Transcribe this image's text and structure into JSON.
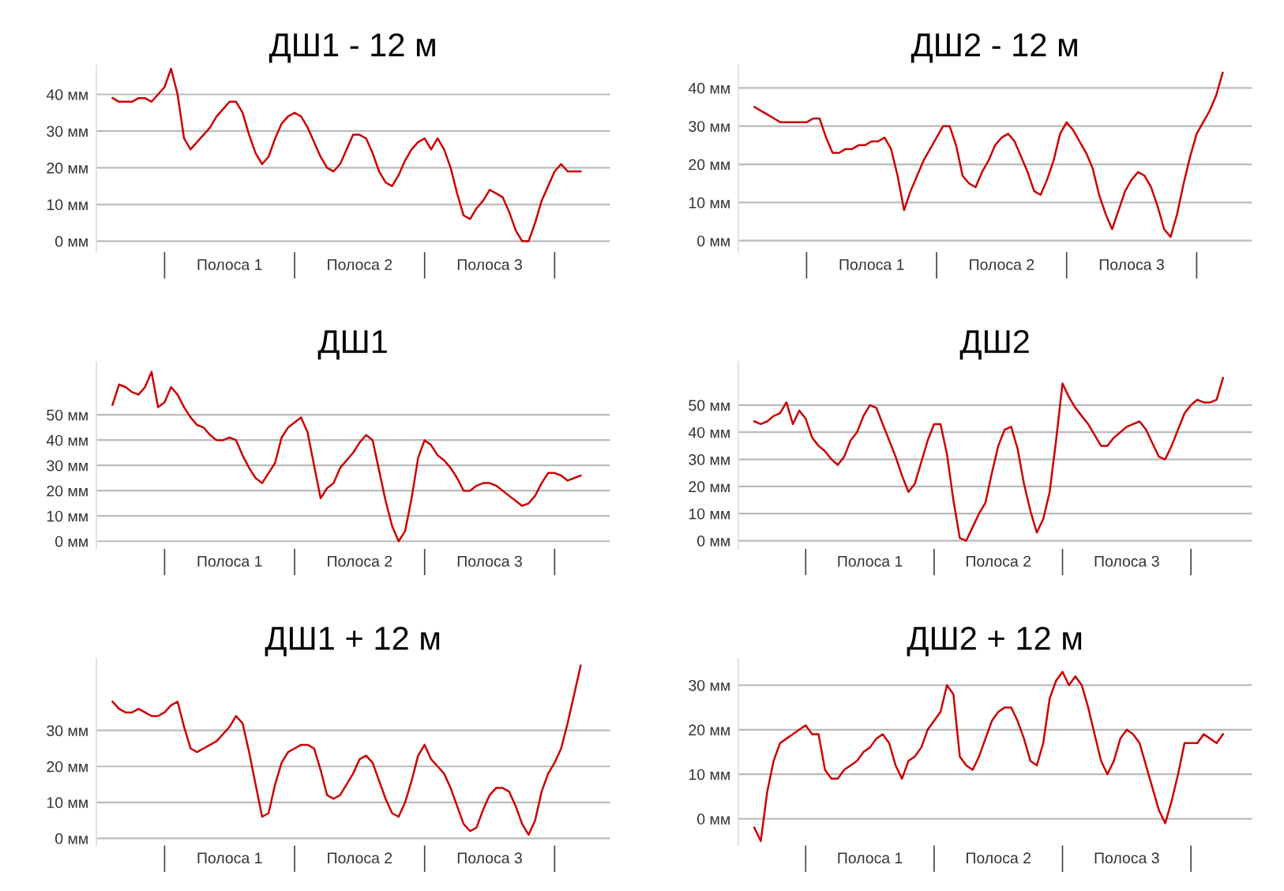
{
  "chart_data": [
    {
      "type": "line",
      "title": "ДШ1 - 12 м",
      "grid": "y",
      "color": "#cc0000",
      "ylim": [
        -3,
        48
      ],
      "categories": [
        null,
        null,
        null,
        null,
        null,
        null,
        null,
        null,
        null,
        null,
        null,
        null,
        null,
        null,
        null,
        null,
        null,
        null,
        "Полоса 1",
        null,
        null,
        null,
        null,
        null,
        null,
        null,
        null,
        null,
        null,
        null,
        null,
        null,
        null,
        null,
        null,
        null,
        null,
        null,
        "Полоса 2",
        null,
        null,
        null,
        null,
        null,
        null,
        null,
        null,
        null,
        null,
        null,
        null,
        null,
        null,
        null,
        null,
        null,
        null,
        null,
        "Полоса 3",
        null,
        null,
        null,
        null,
        null,
        null,
        null,
        null,
        null,
        null,
        null,
        null,
        null,
        null
      ],
      "yticks": [
        {
          "value": 0,
          "label": "0 мм"
        },
        {
          "value": 10,
          "label": "10 мм"
        },
        {
          "value": 20,
          "label": "20 мм"
        },
        {
          "value": 30,
          "label": "30 мм"
        },
        {
          "value": 40,
          "label": "40 мм"
        }
      ],
      "values": [
        39,
        38,
        38,
        38,
        39,
        39,
        38,
        40,
        42,
        47,
        40,
        28,
        25,
        27,
        29,
        31,
        34,
        36,
        38,
        38,
        35,
        29,
        24,
        21,
        23,
        28,
        32,
        34,
        35,
        34,
        31,
        27,
        23,
        20,
        19,
        21,
        25,
        29,
        29,
        28,
        24,
        19,
        16,
        15,
        18,
        22,
        25,
        27,
        28,
        25,
        28,
        25,
        20,
        13,
        7,
        6,
        9,
        11,
        14,
        13,
        12,
        8,
        3,
        0,
        0,
        5,
        11,
        15,
        19,
        21,
        19,
        19,
        19
      ]
    },
    {
      "type": "line",
      "title": "ДШ2 - 12 м",
      "grid": "y",
      "color": "#cc0000",
      "ylim": [
        -3,
        46
      ],
      "categories": [
        null,
        null,
        null,
        null,
        null,
        null,
        null,
        null,
        null,
        null,
        null,
        null,
        null,
        null,
        null,
        null,
        null,
        null,
        "Полоса 1",
        null,
        null,
        null,
        null,
        null,
        null,
        null,
        null,
        null,
        null,
        null,
        null,
        null,
        null,
        null,
        null,
        null,
        null,
        null,
        "Полоса 2",
        null,
        null,
        null,
        null,
        null,
        null,
        null,
        null,
        null,
        null,
        null,
        null,
        null,
        null,
        null,
        null,
        null,
        null,
        null,
        "Полоса 3",
        null,
        null,
        null,
        null,
        null,
        null,
        null,
        null,
        null,
        null,
        null,
        null,
        null,
        null
      ],
      "yticks": [
        {
          "value": 0,
          "label": "0 мм"
        },
        {
          "value": 10,
          "label": "10 мм"
        },
        {
          "value": 20,
          "label": "20 мм"
        },
        {
          "value": 30,
          "label": "30 мм"
        },
        {
          "value": 40,
          "label": "40 мм"
        }
      ],
      "values": [
        35,
        34,
        33,
        32,
        31,
        31,
        31,
        31,
        31,
        32,
        32,
        27,
        23,
        23,
        24,
        24,
        25,
        25,
        26,
        26,
        27,
        24,
        17,
        8,
        13,
        17,
        21,
        24,
        27,
        30,
        30,
        25,
        17,
        15,
        14,
        18,
        21,
        25,
        27,
        28,
        26,
        22,
        18,
        13,
        12,
        16,
        21,
        28,
        31,
        29,
        26,
        23,
        19,
        12,
        7,
        3,
        8,
        13,
        16,
        18,
        17,
        14,
        9,
        3,
        1,
        7,
        15,
        22,
        28,
        31,
        34,
        38,
        44
      ]
    },
    {
      "type": "line",
      "title": "ДШ1",
      "grid": "y",
      "color": "#cc0000",
      "ylim": [
        -3,
        71
      ],
      "categories": [
        null,
        null,
        null,
        null,
        null,
        null,
        null,
        null,
        null,
        null,
        null,
        null,
        null,
        null,
        null,
        null,
        null,
        null,
        "Полоса 1",
        null,
        null,
        null,
        null,
        null,
        null,
        null,
        null,
        null,
        null,
        null,
        null,
        null,
        null,
        null,
        null,
        null,
        null,
        null,
        "Полоса 2",
        null,
        null,
        null,
        null,
        null,
        null,
        null,
        null,
        null,
        null,
        null,
        null,
        null,
        null,
        null,
        null,
        null,
        null,
        null,
        "Полоса 3",
        null,
        null,
        null,
        null,
        null,
        null,
        null,
        null,
        null,
        null,
        null,
        null,
        null,
        null
      ],
      "yticks": [
        {
          "value": 0,
          "label": "0 мм"
        },
        {
          "value": 10,
          "label": "10 мм"
        },
        {
          "value": 20,
          "label": "20 мм"
        },
        {
          "value": 30,
          "label": "30 мм"
        },
        {
          "value": 40,
          "label": "40 мм"
        },
        {
          "value": 50,
          "label": "50 мм"
        }
      ],
      "values": [
        54,
        62,
        61,
        59,
        58,
        61,
        67,
        53,
        55,
        61,
        58,
        53,
        49,
        46,
        45,
        42,
        40,
        40,
        41,
        40,
        34,
        29,
        25,
        23,
        27,
        31,
        41,
        45,
        47,
        49,
        43,
        30,
        17,
        21,
        23,
        29,
        32,
        35,
        39,
        42,
        40,
        28,
        16,
        6,
        0,
        4,
        17,
        33,
        40,
        38,
        34,
        32,
        29,
        25,
        20,
        20,
        22,
        23,
        23,
        22,
        20,
        18,
        16,
        14,
        15,
        18,
        23,
        27,
        27,
        26,
        24,
        25,
        26
      ]
    },
    {
      "type": "line",
      "title": "ДШ2",
      "grid": "y",
      "color": "#cc0000",
      "ylim": [
        -3,
        66
      ],
      "categories": [
        null,
        null,
        null,
        null,
        null,
        null,
        null,
        null,
        null,
        null,
        null,
        null,
        null,
        null,
        null,
        null,
        null,
        null,
        "Полоса 1",
        null,
        null,
        null,
        null,
        null,
        null,
        null,
        null,
        null,
        null,
        null,
        null,
        null,
        null,
        null,
        null,
        null,
        null,
        null,
        "Полоса 2",
        null,
        null,
        null,
        null,
        null,
        null,
        null,
        null,
        null,
        null,
        null,
        null,
        null,
        null,
        null,
        null,
        null,
        null,
        null,
        "Полоса 3",
        null,
        null,
        null,
        null,
        null,
        null,
        null,
        null,
        null,
        null,
        null,
        null,
        null,
        null,
        null
      ],
      "yticks": [
        {
          "value": 0,
          "label": "0 мм"
        },
        {
          "value": 10,
          "label": "10 мм"
        },
        {
          "value": 20,
          "label": "20 мм"
        },
        {
          "value": 30,
          "label": "30 мм"
        },
        {
          "value": 40,
          "label": "40 мм"
        },
        {
          "value": 50,
          "label": "50 мм"
        }
      ],
      "values": [
        44,
        43,
        44,
        46,
        47,
        51,
        43,
        48,
        45,
        38,
        35,
        33,
        30,
        28,
        31,
        37,
        40,
        46,
        50,
        49,
        43,
        37,
        31,
        24,
        18,
        21,
        29,
        37,
        43,
        43,
        32,
        15,
        1,
        0,
        5,
        10,
        14,
        25,
        35,
        41,
        42,
        34,
        21,
        11,
        3,
        8,
        18,
        37,
        58,
        53,
        49,
        46,
        43,
        39,
        35,
        35,
        38,
        40,
        42,
        43,
        44,
        41,
        36,
        31,
        30,
        35,
        41,
        47,
        50,
        52,
        51,
        51,
        52,
        60
      ]
    },
    {
      "type": "line",
      "title": "ДШ1 + 12 м",
      "grid": "y",
      "color": "#cc0000",
      "ylim": [
        -2,
        50
      ],
      "categories": [
        null,
        null,
        null,
        null,
        null,
        null,
        null,
        null,
        null,
        null,
        null,
        null,
        null,
        null,
        null,
        null,
        null,
        null,
        "Полоса 1",
        null,
        null,
        null,
        null,
        null,
        null,
        null,
        null,
        null,
        null,
        null,
        null,
        null,
        null,
        null,
        null,
        null,
        null,
        null,
        "Полоса 2",
        null,
        null,
        null,
        null,
        null,
        null,
        null,
        null,
        null,
        null,
        null,
        null,
        null,
        null,
        null,
        null,
        null,
        null,
        null,
        "Полоса 3",
        null,
        null,
        null,
        null,
        null,
        null,
        null,
        null,
        null,
        null,
        null,
        null,
        null,
        null
      ],
      "yticks": [
        {
          "value": 0,
          "label": "0 мм"
        },
        {
          "value": 10,
          "label": "10 мм"
        },
        {
          "value": 20,
          "label": "20 мм"
        },
        {
          "value": 30,
          "label": "30 мм"
        }
      ],
      "values": [
        38,
        36,
        35,
        35,
        36,
        35,
        34,
        34,
        35,
        37,
        38,
        31,
        25,
        24,
        25,
        26,
        27,
        29,
        31,
        34,
        32,
        24,
        15,
        6,
        7,
        15,
        21,
        24,
        25,
        26,
        26,
        25,
        19,
        12,
        11,
        12,
        15,
        18,
        22,
        23,
        21,
        16,
        11,
        7,
        6,
        10,
        16,
        23,
        26,
        22,
        20,
        18,
        14,
        9,
        4,
        2,
        3,
        8,
        12,
        14,
        14,
        13,
        9,
        4,
        1,
        5,
        13,
        18,
        21,
        25,
        32,
        40,
        48
      ]
    },
    {
      "type": "line",
      "title": "ДШ2 + 12 м",
      "grid": "y",
      "color": "#cc0000",
      "ylim": [
        -6,
        36
      ],
      "categories": [
        null,
        null,
        null,
        null,
        null,
        null,
        null,
        null,
        null,
        null,
        null,
        null,
        null,
        null,
        null,
        null,
        null,
        null,
        "Полоса 1",
        null,
        null,
        null,
        null,
        null,
        null,
        null,
        null,
        null,
        null,
        null,
        null,
        null,
        null,
        null,
        null,
        null,
        null,
        null,
        "Полоса 2",
        null,
        null,
        null,
        null,
        null,
        null,
        null,
        null,
        null,
        null,
        null,
        null,
        null,
        null,
        null,
        null,
        null,
        null,
        null,
        "Полоса 3",
        null,
        null,
        null,
        null,
        null,
        null,
        null,
        null,
        null,
        null,
        null,
        null,
        null,
        null,
        null
      ],
      "yticks": [
        {
          "value": 0,
          "label": "0 мм"
        },
        {
          "value": 10,
          "label": "10 мм"
        },
        {
          "value": 20,
          "label": "20 мм"
        },
        {
          "value": 30,
          "label": "30 мм"
        }
      ],
      "values": [
        -2,
        -5,
        6,
        13,
        17,
        18,
        19,
        20,
        21,
        19,
        19,
        11,
        9,
        9,
        11,
        12,
        13,
        15,
        16,
        18,
        19,
        17,
        12,
        9,
        13,
        14,
        16,
        20,
        22,
        24,
        30,
        28,
        14,
        12,
        11,
        14,
        18,
        22,
        24,
        25,
        25,
        22,
        18,
        13,
        12,
        17,
        27,
        31,
        33,
        30,
        32,
        30,
        25,
        19,
        13,
        10,
        13,
        18,
        20,
        19,
        17,
        12,
        7,
        2,
        -1,
        4,
        10,
        17,
        17,
        17,
        19,
        18,
        17,
        19
      ]
    }
  ]
}
